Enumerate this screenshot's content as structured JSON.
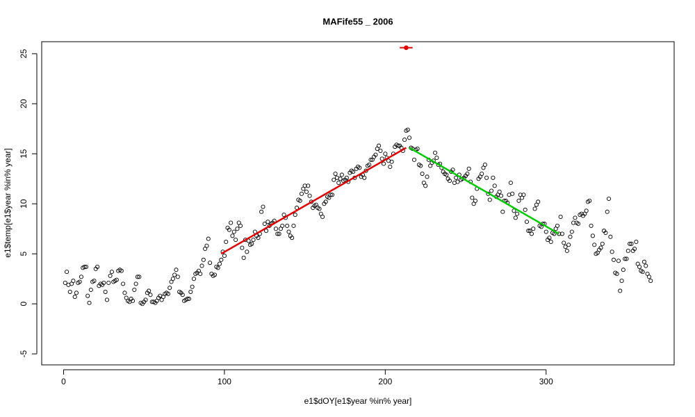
{
  "chart_data": {
    "type": "scatter",
    "title": "MAFife55 _ 2006",
    "x_label": "e1$dOY[e1$year %in% year]",
    "y_label": "e1$temp[e1$year %in% year]",
    "xlim": [
      -13.6,
      379.6
    ],
    "ylim": [
      -6.1,
      26.2
    ],
    "xticks": [
      0,
      100,
      200,
      300
    ],
    "yticks": [
      -5,
      0,
      5,
      10,
      15,
      20,
      25
    ],
    "point_color": "#000000",
    "x": [
      1,
      2,
      3,
      4,
      5,
      6,
      7,
      8,
      9,
      10,
      11,
      12,
      13,
      14,
      15,
      16,
      17,
      18,
      19,
      20,
      21,
      22,
      23,
      24,
      25,
      26,
      27,
      28,
      29,
      30,
      31,
      32,
      33,
      34,
      35,
      36,
      37,
      38,
      39,
      40,
      41,
      42,
      43,
      44,
      45,
      46,
      47,
      48,
      49,
      50,
      51,
      52,
      53,
      54,
      55,
      56,
      57,
      58,
      59,
      60,
      61,
      62,
      63,
      64,
      65,
      66,
      67,
      68,
      69,
      70,
      71,
      72,
      73,
      74,
      75,
      76,
      77,
      78,
      79,
      80,
      81,
      82,
      83,
      84,
      85,
      86,
      87,
      88,
      89,
      90,
      91,
      92,
      93,
      94,
      95,
      96,
      97,
      98,
      99,
      100,
      101,
      102,
      103,
      104,
      105,
      106,
      107,
      108,
      109,
      110,
      111,
      112,
      113,
      114,
      115,
      116,
      117,
      118,
      119,
      120,
      121,
      122,
      123,
      124,
      125,
      126,
      127,
      128,
      129,
      130,
      131,
      132,
      133,
      134,
      135,
      136,
      137,
      138,
      139,
      140,
      141,
      142,
      143,
      144,
      145,
      146,
      147,
      148,
      149,
      150,
      151,
      152,
      153,
      154,
      155,
      156,
      157,
      158,
      159,
      160,
      161,
      162,
      163,
      164,
      165,
      166,
      167,
      168,
      169,
      170,
      171,
      172,
      173,
      174,
      175,
      176,
      177,
      178,
      179,
      180,
      181,
      182,
      183,
      184,
      185,
      186,
      187,
      188,
      189,
      190,
      191,
      192,
      193,
      194,
      195,
      196,
      197,
      198,
      199,
      200,
      201,
      202,
      203,
      204,
      205,
      206,
      207,
      208,
      209,
      210,
      211,
      212,
      213,
      214,
      215,
      216,
      217,
      218,
      219,
      220,
      221,
      222,
      223,
      224,
      225,
      226,
      227,
      228,
      229,
      230,
      231,
      232,
      233,
      234,
      235,
      236,
      237,
      238,
      239,
      240,
      241,
      242,
      243,
      244,
      245,
      246,
      247,
      248,
      249,
      250,
      251,
      252,
      253,
      254,
      255,
      256,
      257,
      258,
      259,
      260,
      261,
      262,
      263,
      264,
      265,
      266,
      267,
      268,
      269,
      270,
      271,
      272,
      273,
      274,
      275,
      276,
      277,
      278,
      279,
      280,
      281,
      282,
      283,
      284,
      285,
      286,
      287,
      288,
      289,
      290,
      291,
      292,
      293,
      294,
      295,
      296,
      297,
      298,
      299,
      300,
      301,
      302,
      303,
      304,
      305,
      306,
      307,
      308,
      309,
      310,
      311,
      312,
      313,
      314,
      315,
      316,
      317,
      318,
      319,
      320,
      321,
      322,
      323,
      324,
      325,
      326,
      327,
      328,
      329,
      330,
      331,
      332,
      333,
      334,
      335,
      336,
      337,
      338,
      339,
      340,
      341,
      342,
      343,
      344,
      345,
      346,
      347,
      348,
      349,
      350,
      351,
      352,
      353,
      354,
      355,
      356,
      357,
      358,
      359,
      360,
      361,
      362,
      363,
      364,
      365
    ],
    "values": [
      2.1,
      3.2,
      1.9,
      1.2,
      2.0,
      2.3,
      0.7,
      1.1,
      2.1,
      2.2,
      2.7,
      3.6,
      3.7,
      3.7,
      0.8,
      0.1,
      1.4,
      2.2,
      2.3,
      3.5,
      3.7,
      1.8,
      2.0,
      1.9,
      2.1,
      1.2,
      0.4,
      2.1,
      2.8,
      3.2,
      2.2,
      2.3,
      2.4,
      3.3,
      3.4,
      3.3,
      2.0,
      1.1,
      0.6,
      0.3,
      0.2,
      0.5,
      0.3,
      1.4,
      2.0,
      2.7,
      2.7,
      0.1,
      0.0,
      0.2,
      0.4,
      1.1,
      1.3,
      0.9,
      0.2,
      0.2,
      0.1,
      0.3,
      0.6,
      0.8,
      0.4,
      0.7,
      1.0,
      1.1,
      1.0,
      1.6,
      2.2,
      2.5,
      2.9,
      3.4,
      2.7,
      1.2,
      1.1,
      0.9,
      0.3,
      0.4,
      0.5,
      0.5,
      1.2,
      1.7,
      2.5,
      3.0,
      3.1,
      3.3,
      3.0,
      3.8,
      4.4,
      5.5,
      5.8,
      6.5,
      4.1,
      3.0,
      2.8,
      2.9,
      3.7,
      3.6,
      4.0,
      4.4,
      5.2,
      4.8,
      6.2,
      7.6,
      7.4,
      8.1,
      6.8,
      7.2,
      6.4,
      7.5,
      8.1,
      7.8,
      5.6,
      4.6,
      6.4,
      5.2,
      6.3,
      5.9,
      6.0,
      6.4,
      7.2,
      6.8,
      6.6,
      7.0,
      9.2,
      9.7,
      8.0,
      7.3,
      8.2,
      7.8,
      8.0,
      8.1,
      8.3,
      7.5,
      7.0,
      7.0,
      7.5,
      7.8,
      8.9,
      8.6,
      7.8,
      7.2,
      6.8,
      6.6,
      7.8,
      8.9,
      9.6,
      10.4,
      10.3,
      11.0,
      11.5,
      11.8,
      11.2,
      11.8,
      10.8,
      10.2,
      9.6,
      9.8,
      9.9,
      9.6,
      9.5,
      9.0,
      8.7,
      10.0,
      10.2,
      10.7,
      10.6,
      10.9,
      10.9,
      12.4,
      13.0,
      12.6,
      12.1,
      12.5,
      12.9,
      12.3,
      12.4,
      12.6,
      12.2,
      13.1,
      13.3,
      13.2,
      12.6,
      13.5,
      13.7,
      13.6,
      12.7,
      12.9,
      12.6,
      13.3,
      13.8,
      13.9,
      14.4,
      14.4,
      14.7,
      14.9,
      15.5,
      15.8,
      15.3,
      14.5,
      14.0,
      15.0,
      14.6,
      14.3,
      13.7,
      14.2,
      15.0,
      15.7,
      15.9,
      15.8,
      15.8,
      15.6,
      15.3,
      16.4,
      17.3,
      17.4,
      16.6,
      15.6,
      15.5,
      14.4,
      15.4,
      15.5,
      13.9,
      13.8,
      13.0,
      12.1,
      11.8,
      12.7,
      14.4,
      13.8,
      14.1,
      14.3,
      15.1,
      14.6,
      13.9,
      14.0,
      13.6,
      13.2,
      13.0,
      12.9,
      12.5,
      12.3,
      13.2,
      13.4,
      12.1,
      12.6,
      12.2,
      12.9,
      12.4,
      12.5,
      12.6,
      12.8,
      13.0,
      13.5,
      12.2,
      10.6,
      10.0,
      10.3,
      11.5,
      12.5,
      12.7,
      13.0,
      13.6,
      13.9,
      12.6,
      11.0,
      10.4,
      11.3,
      12.6,
      11.8,
      10.7,
      10.9,
      11.2,
      10.8,
      9.2,
      10.3,
      10.3,
      10.1,
      10.9,
      12.1,
      11.0,
      9.3,
      8.6,
      9.0,
      10.3,
      10.9,
      10.6,
      10.9,
      9.4,
      8.2,
      7.3,
      7.3,
      7.0,
      7.5,
      9.5,
      9.9,
      10.2,
      7.8,
      7.7,
      8.0,
      8.0,
      7.2,
      6.4,
      6.6,
      6.2,
      7.1,
      7.0,
      7.5,
      7.8,
      7.0,
      8.7,
      7.0,
      6.1,
      5.7,
      5.3,
      5.9,
      6.7,
      7.2,
      8.1,
      8.6,
      8.1,
      8.0,
      8.9,
      9.0,
      8.8,
      9.0,
      9.3,
      10.2,
      10.3,
      7.8,
      6.8,
      5.9,
      5.0,
      5.1,
      5.4,
      5.6,
      6.0,
      7.3,
      7.1,
      9.2,
      10.5,
      6.7,
      5.2,
      4.4,
      3.1,
      3.0,
      4.3,
      1.3,
      2.3,
      3.4,
      4.5,
      4.5,
      5.3,
      6.0,
      6.0,
      5.3,
      5.5,
      6.2,
      4.0,
      3.7,
      3.3,
      3.2,
      4.2,
      3.8,
      3.0,
      2.7,
      2.3
    ],
    "lines": [
      {
        "color": "#e00000",
        "x": [
          98,
          213
        ],
        "values": [
          5.0,
          15.6
        ]
      },
      {
        "color": "#00cc00",
        "x": [
          215,
          308
        ],
        "values": [
          15.6,
          7.0
        ]
      }
    ],
    "highlight": {
      "x": 213,
      "value": 25.6,
      "x_error": 4,
      "color": "#e00000"
    }
  }
}
